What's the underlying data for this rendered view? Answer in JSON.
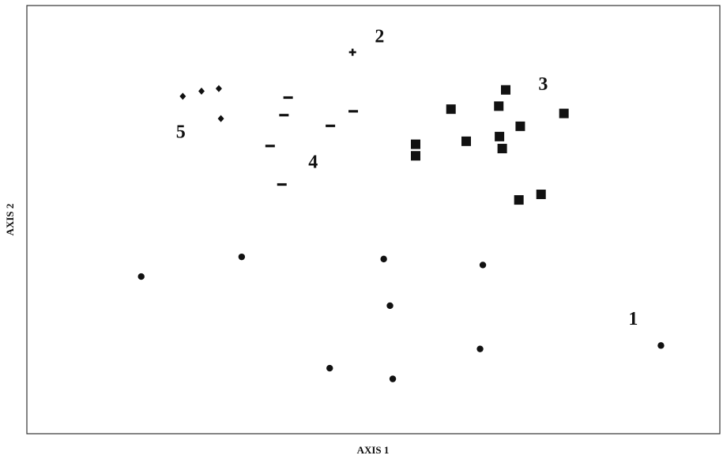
{
  "chart_data": {
    "type": "scatter",
    "title": "",
    "xlabel": "AXIS 1",
    "ylabel": "AXIS 2",
    "xlim": [
      0,
      100
    ],
    "ylim": [
      0,
      100
    ],
    "grid": false,
    "legend": "none",
    "marker_color": "#111111",
    "series": [
      {
        "label": "1",
        "marker": "circle",
        "label_at": [
          87.5,
          26.5
        ],
        "points": [
          [
            16.5,
            36.7
          ],
          [
            31,
            41.3
          ],
          [
            51.5,
            40.8
          ],
          [
            65.8,
            39.4
          ],
          [
            52.4,
            29.9
          ],
          [
            65.4,
            19.8
          ],
          [
            43.7,
            15.3
          ],
          [
            52.8,
            12.8
          ],
          [
            91.5,
            20.6
          ]
        ]
      },
      {
        "label": "2",
        "marker": "plus",
        "label_at": [
          50.9,
          92.4
        ],
        "points": [
          [
            47,
            89.1
          ]
        ]
      },
      {
        "label": "3",
        "marker": "square",
        "label_at": [
          74.5,
          81.3
        ],
        "points": [
          [
            69.1,
            80.3
          ],
          [
            61.2,
            75.8
          ],
          [
            68.1,
            76.5
          ],
          [
            77.5,
            74.8
          ],
          [
            71.2,
            71.8
          ],
          [
            68.2,
            69.4
          ],
          [
            63.4,
            68.3
          ],
          [
            56.1,
            67.6
          ],
          [
            68.6,
            66.6
          ],
          [
            56.1,
            64.9
          ],
          [
            74.2,
            55.9
          ],
          [
            71,
            54.6
          ]
        ]
      },
      {
        "label": "4",
        "marker": "dash",
        "label_at": [
          41.3,
          63.1
        ],
        "points": [
          [
            37.7,
            78.5
          ],
          [
            37.1,
            74.4
          ],
          [
            47.1,
            75.3
          ],
          [
            43.8,
            71.9
          ],
          [
            35.1,
            67.2
          ],
          [
            36.8,
            58.2
          ]
        ]
      },
      {
        "label": "5",
        "marker": "diamond",
        "label_at": [
          22.2,
          70.1
        ],
        "points": [
          [
            22.5,
            78.8
          ],
          [
            25.2,
            80
          ],
          [
            27.7,
            80.6
          ],
          [
            28,
            73.6
          ]
        ]
      }
    ]
  }
}
